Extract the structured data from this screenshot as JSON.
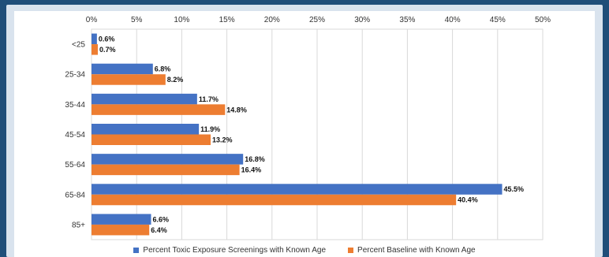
{
  "chart_data": {
    "type": "bar",
    "orientation": "horizontal",
    "categories": [
      "<25",
      "25-34",
      "35-44",
      "45-54",
      "55-64",
      "65-84",
      "85+"
    ],
    "series": [
      {
        "name": "Percent Toxic Exposure Screenings with Known Age",
        "color": "#4472c4",
        "values": [
          0.6,
          6.8,
          11.7,
          11.9,
          16.8,
          45.5,
          6.6
        ],
        "labels": [
          "0.6%",
          "6.8%",
          "11.7%",
          "11.9%",
          "16.8%",
          "45.5%",
          "6.6%"
        ]
      },
      {
        "name": "Percent Baseline with Known Age",
        "color": "#ed7d31",
        "values": [
          0.7,
          8.2,
          14.8,
          13.2,
          16.4,
          40.4,
          6.4
        ],
        "labels": [
          "0.7%",
          "8.2%",
          "14.8%",
          "13.2%",
          "16.4%",
          "40.4%",
          "6.4%"
        ]
      }
    ],
    "xlim": [
      0,
      50
    ],
    "xticks": [
      0,
      5,
      10,
      15,
      20,
      25,
      30,
      35,
      40,
      45,
      50
    ],
    "xtick_labels": [
      "0%",
      "5%",
      "10%",
      "15%",
      "20%",
      "25%",
      "30%",
      "35%",
      "40%",
      "45%",
      "50%"
    ],
    "xaxis_position": "top",
    "grid": true,
    "legend_position": "bottom"
  }
}
